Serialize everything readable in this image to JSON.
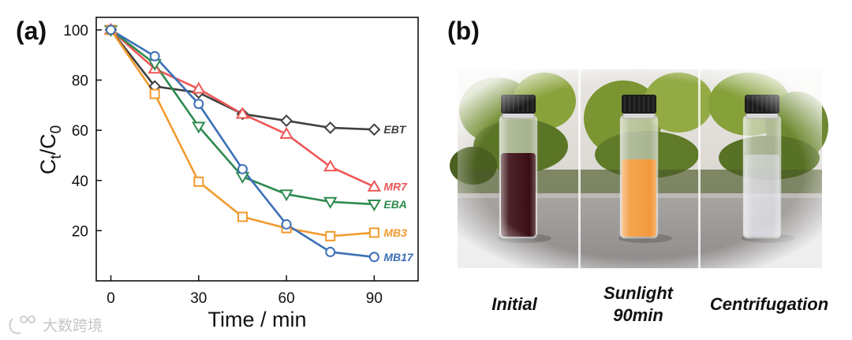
{
  "panels": {
    "a_label": "(a)",
    "b_label": "(b)"
  },
  "chart_data": {
    "type": "line",
    "xlabel": "Time / min",
    "ylabel_main": "C",
    "ylabel_sub1": "t",
    "ylabel_slash": "/C",
    "ylabel_sub2": "0",
    "xlim": [
      -5,
      105
    ],
    "ylim": [
      0,
      105
    ],
    "xticks": [
      0,
      30,
      60,
      90
    ],
    "yticks": [
      20,
      40,
      60,
      80,
      100
    ],
    "x": [
      0,
      15,
      30,
      45,
      60,
      75,
      90
    ],
    "grid": false,
    "legend": "inline labels at line ends",
    "series": [
      {
        "name": "EBT",
        "color": "#404040",
        "marker": "diamond",
        "values": [
          100,
          77.5,
          75,
          66.5,
          63.8,
          61,
          60.3
        ]
      },
      {
        "name": "MR7",
        "color": "#ee5656",
        "marker": "triangle",
        "values": [
          100,
          84.5,
          76.5,
          66.5,
          58.5,
          45.5,
          37.5
        ]
      },
      {
        "name": "EBA",
        "color": "#2e8b4f",
        "marker": "tri-down",
        "values": [
          100,
          86.5,
          61.5,
          41.5,
          34.5,
          31.5,
          30.5
        ]
      },
      {
        "name": "MB3",
        "color": "#f29a2e",
        "marker": "square",
        "values": [
          100,
          74.5,
          39.5,
          25.5,
          21,
          17.8,
          19.2
        ]
      },
      {
        "name": "MB17",
        "color": "#3b6fb6",
        "marker": "circle",
        "values": [
          100,
          89.5,
          70.5,
          44.5,
          22.5,
          11.5,
          9.5
        ]
      }
    ]
  },
  "photos": {
    "captions": [
      {
        "line1": "Initial",
        "line2": ""
      },
      {
        "line1": "Sunlight",
        "line2": "90min"
      },
      {
        "line1": "Centrifugation",
        "line2": ""
      }
    ],
    "liquid_colors": [
      "#3a0d14",
      "#f39a3e",
      "#dcdce6"
    ]
  },
  "watermark": {
    "text": "大数跨境",
    "icon": "logo-icon"
  }
}
